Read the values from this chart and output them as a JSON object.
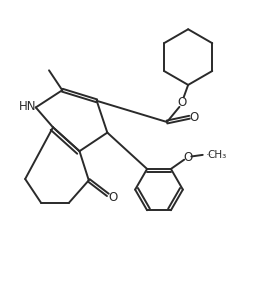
{
  "background_color": "#ffffff",
  "line_color": "#2a2a2a",
  "line_width": 1.4,
  "figsize": [
    2.65,
    3.01
  ],
  "dpi": 100,
  "xlim": [
    0,
    10
  ],
  "ylim": [
    0,
    11.35
  ]
}
